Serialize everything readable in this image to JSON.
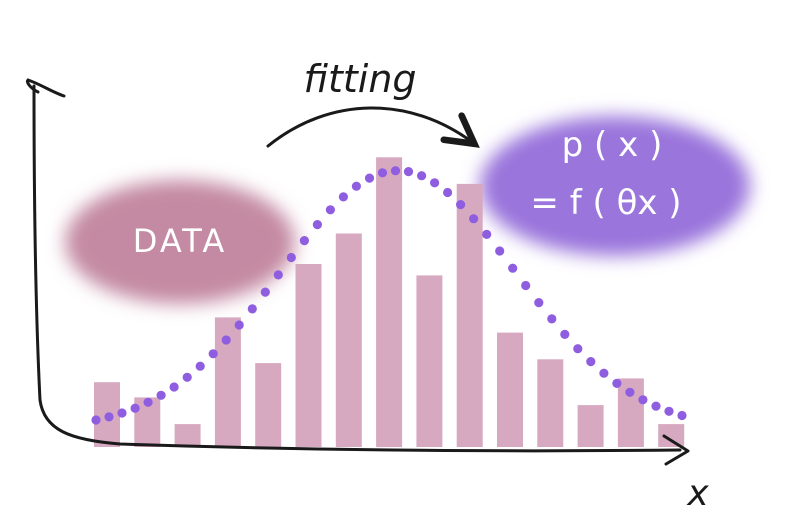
{
  "annotations": {
    "arrow_label": "fitting",
    "data_blob": "DATA",
    "model_line1": "p ( x )",
    "model_line2": "= f ( θx )",
    "axis_x_label": "x"
  },
  "colors": {
    "bar": "#d7a9c0",
    "data_blob": "#c48aa3",
    "model_blob": "#9a74dc",
    "curve_dots": "#8f5ee0",
    "ink": "#1a1a1a"
  },
  "chart_data": {
    "type": "bar",
    "values": [
      0.17,
      0.13,
      0.06,
      0.34,
      0.22,
      0.48,
      0.56,
      0.76,
      0.45,
      0.69,
      0.3,
      0.23,
      0.11,
      0.18,
      0.06
    ],
    "overlay_curve": "gaussian-dotted",
    "ylim": [
      0,
      0.8
    ]
  }
}
